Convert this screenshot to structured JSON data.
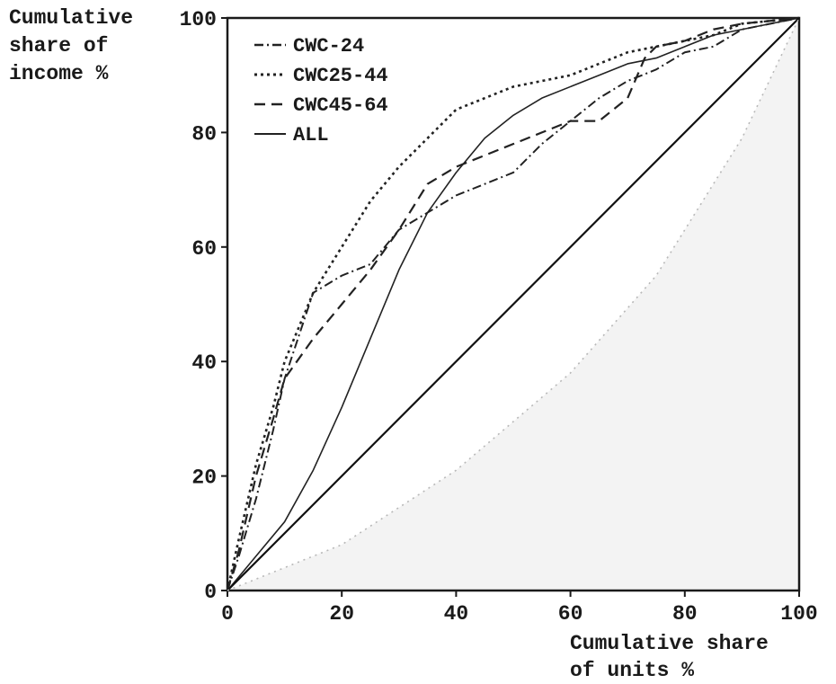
{
  "chart_data": {
    "type": "line",
    "ylabel_lines": [
      "Cumulative",
      "share of",
      "income %"
    ],
    "xlabel_lines": [
      "Cumulative share",
      "of units %"
    ],
    "xlim": [
      0,
      100
    ],
    "ylim": [
      0,
      100
    ],
    "xticks": [
      0,
      20,
      40,
      60,
      80,
      100
    ],
    "yticks": [
      0,
      20,
      40,
      60,
      80,
      100
    ],
    "legend_position": "top-left",
    "series": [
      {
        "name": "CWC-24",
        "style": "dashdot",
        "color": "#222222",
        "points": [
          [
            0,
            0
          ],
          [
            2,
            6
          ],
          [
            5,
            16
          ],
          [
            8,
            28
          ],
          [
            10,
            37
          ],
          [
            15,
            52
          ],
          [
            20,
            55
          ],
          [
            25,
            57
          ],
          [
            30,
            63
          ],
          [
            35,
            66
          ],
          [
            40,
            69
          ],
          [
            45,
            71
          ],
          [
            50,
            73
          ],
          [
            55,
            78
          ],
          [
            60,
            82
          ],
          [
            65,
            86
          ],
          [
            70,
            89
          ],
          [
            75,
            91
          ],
          [
            80,
            94
          ],
          [
            85,
            95
          ],
          [
            90,
            98
          ],
          [
            100,
            100
          ]
        ]
      },
      {
        "name": "CWC25-44",
        "style": "dotted",
        "color": "#222222",
        "points": [
          [
            0,
            0
          ],
          [
            2,
            9
          ],
          [
            5,
            22
          ],
          [
            8,
            32
          ],
          [
            10,
            40
          ],
          [
            15,
            52
          ],
          [
            20,
            60
          ],
          [
            25,
            68
          ],
          [
            30,
            74
          ],
          [
            35,
            79
          ],
          [
            40,
            84
          ],
          [
            45,
            86
          ],
          [
            50,
            88
          ],
          [
            55,
            89
          ],
          [
            60,
            90
          ],
          [
            65,
            92
          ],
          [
            70,
            94
          ],
          [
            75,
            95
          ],
          [
            80,
            96
          ],
          [
            85,
            97
          ],
          [
            90,
            99
          ],
          [
            100,
            100
          ]
        ]
      },
      {
        "name": "CWC45-64",
        "style": "dashed",
        "color": "#222222",
        "points": [
          [
            0,
            0
          ],
          [
            2,
            7
          ],
          [
            5,
            20
          ],
          [
            8,
            30
          ],
          [
            10,
            37
          ],
          [
            15,
            44
          ],
          [
            20,
            50
          ],
          [
            25,
            56
          ],
          [
            30,
            63
          ],
          [
            35,
            71
          ],
          [
            40,
            74
          ],
          [
            45,
            76
          ],
          [
            50,
            78
          ],
          [
            55,
            80
          ],
          [
            60,
            82
          ],
          [
            65,
            82
          ],
          [
            70,
            86
          ],
          [
            73,
            93
          ],
          [
            75,
            95
          ],
          [
            80,
            96
          ],
          [
            85,
            98
          ],
          [
            90,
            99
          ],
          [
            100,
            100
          ]
        ]
      },
      {
        "name": "ALL",
        "style": "solid",
        "color": "#222222",
        "points": [
          [
            0,
            0
          ],
          [
            5,
            6
          ],
          [
            10,
            12
          ],
          [
            15,
            21
          ],
          [
            20,
            32
          ],
          [
            25,
            44
          ],
          [
            30,
            56
          ],
          [
            35,
            66
          ],
          [
            40,
            73
          ],
          [
            45,
            79
          ],
          [
            50,
            83
          ],
          [
            55,
            86
          ],
          [
            60,
            88
          ],
          [
            65,
            90
          ],
          [
            70,
            92
          ],
          [
            75,
            93
          ],
          [
            80,
            95
          ],
          [
            85,
            97
          ],
          [
            90,
            98
          ],
          [
            100,
            100
          ]
        ]
      },
      {
        "name": "",
        "style": "solid-thick",
        "color": "#111111",
        "points": [
          [
            0,
            0
          ],
          [
            100,
            100
          ]
        ]
      },
      {
        "name": "",
        "style": "faint-dotted",
        "color": "#b8b8b8",
        "points": [
          [
            0,
            0
          ],
          [
            20,
            8
          ],
          [
            40,
            21
          ],
          [
            60,
            38
          ],
          [
            75,
            55
          ],
          [
            90,
            79
          ],
          [
            100,
            100
          ]
        ]
      }
    ]
  }
}
